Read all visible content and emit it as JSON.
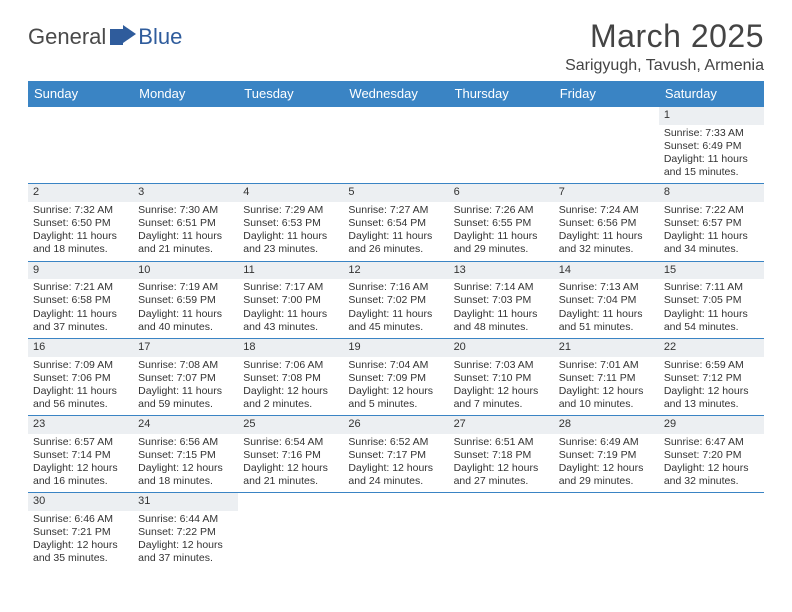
{
  "logo": {
    "part1": "General",
    "part2": "Blue"
  },
  "title": "March 2025",
  "location": "Sarigyugh, Tavush, Armenia",
  "colors": {
    "header_bg": "#3a84c4",
    "header_text": "#ffffff",
    "border": "#3a84c4",
    "daynum_bg": "#eceff2",
    "text": "#333333",
    "logo_gray": "#4a4a4a",
    "logo_blue": "#2f5c9c"
  },
  "weekdays": [
    "Sunday",
    "Monday",
    "Tuesday",
    "Wednesday",
    "Thursday",
    "Friday",
    "Saturday"
  ],
  "weeks": [
    [
      null,
      null,
      null,
      null,
      null,
      null,
      {
        "d": "1",
        "sr": "7:33 AM",
        "ss": "6:49 PM",
        "dl": "11 hours and 15 minutes."
      }
    ],
    [
      {
        "d": "2",
        "sr": "7:32 AM",
        "ss": "6:50 PM",
        "dl": "11 hours and 18 minutes."
      },
      {
        "d": "3",
        "sr": "7:30 AM",
        "ss": "6:51 PM",
        "dl": "11 hours and 21 minutes."
      },
      {
        "d": "4",
        "sr": "7:29 AM",
        "ss": "6:53 PM",
        "dl": "11 hours and 23 minutes."
      },
      {
        "d": "5",
        "sr": "7:27 AM",
        "ss": "6:54 PM",
        "dl": "11 hours and 26 minutes."
      },
      {
        "d": "6",
        "sr": "7:26 AM",
        "ss": "6:55 PM",
        "dl": "11 hours and 29 minutes."
      },
      {
        "d": "7",
        "sr": "7:24 AM",
        "ss": "6:56 PM",
        "dl": "11 hours and 32 minutes."
      },
      {
        "d": "8",
        "sr": "7:22 AM",
        "ss": "6:57 PM",
        "dl": "11 hours and 34 minutes."
      }
    ],
    [
      {
        "d": "9",
        "sr": "7:21 AM",
        "ss": "6:58 PM",
        "dl": "11 hours and 37 minutes."
      },
      {
        "d": "10",
        "sr": "7:19 AM",
        "ss": "6:59 PM",
        "dl": "11 hours and 40 minutes."
      },
      {
        "d": "11",
        "sr": "7:17 AM",
        "ss": "7:00 PM",
        "dl": "11 hours and 43 minutes."
      },
      {
        "d": "12",
        "sr": "7:16 AM",
        "ss": "7:02 PM",
        "dl": "11 hours and 45 minutes."
      },
      {
        "d": "13",
        "sr": "7:14 AM",
        "ss": "7:03 PM",
        "dl": "11 hours and 48 minutes."
      },
      {
        "d": "14",
        "sr": "7:13 AM",
        "ss": "7:04 PM",
        "dl": "11 hours and 51 minutes."
      },
      {
        "d": "15",
        "sr": "7:11 AM",
        "ss": "7:05 PM",
        "dl": "11 hours and 54 minutes."
      }
    ],
    [
      {
        "d": "16",
        "sr": "7:09 AM",
        "ss": "7:06 PM",
        "dl": "11 hours and 56 minutes."
      },
      {
        "d": "17",
        "sr": "7:08 AM",
        "ss": "7:07 PM",
        "dl": "11 hours and 59 minutes."
      },
      {
        "d": "18",
        "sr": "7:06 AM",
        "ss": "7:08 PM",
        "dl": "12 hours and 2 minutes."
      },
      {
        "d": "19",
        "sr": "7:04 AM",
        "ss": "7:09 PM",
        "dl": "12 hours and 5 minutes."
      },
      {
        "d": "20",
        "sr": "7:03 AM",
        "ss": "7:10 PM",
        "dl": "12 hours and 7 minutes."
      },
      {
        "d": "21",
        "sr": "7:01 AM",
        "ss": "7:11 PM",
        "dl": "12 hours and 10 minutes."
      },
      {
        "d": "22",
        "sr": "6:59 AM",
        "ss": "7:12 PM",
        "dl": "12 hours and 13 minutes."
      }
    ],
    [
      {
        "d": "23",
        "sr": "6:57 AM",
        "ss": "7:14 PM",
        "dl": "12 hours and 16 minutes."
      },
      {
        "d": "24",
        "sr": "6:56 AM",
        "ss": "7:15 PM",
        "dl": "12 hours and 18 minutes."
      },
      {
        "d": "25",
        "sr": "6:54 AM",
        "ss": "7:16 PM",
        "dl": "12 hours and 21 minutes."
      },
      {
        "d": "26",
        "sr": "6:52 AM",
        "ss": "7:17 PM",
        "dl": "12 hours and 24 minutes."
      },
      {
        "d": "27",
        "sr": "6:51 AM",
        "ss": "7:18 PM",
        "dl": "12 hours and 27 minutes."
      },
      {
        "d": "28",
        "sr": "6:49 AM",
        "ss": "7:19 PM",
        "dl": "12 hours and 29 minutes."
      },
      {
        "d": "29",
        "sr": "6:47 AM",
        "ss": "7:20 PM",
        "dl": "12 hours and 32 minutes."
      }
    ],
    [
      {
        "d": "30",
        "sr": "6:46 AM",
        "ss": "7:21 PM",
        "dl": "12 hours and 35 minutes."
      },
      {
        "d": "31",
        "sr": "6:44 AM",
        "ss": "7:22 PM",
        "dl": "12 hours and 37 minutes."
      },
      null,
      null,
      null,
      null,
      null
    ]
  ],
  "labels": {
    "sunrise": "Sunrise: ",
    "sunset": "Sunset: ",
    "daylight": "Daylight: "
  }
}
